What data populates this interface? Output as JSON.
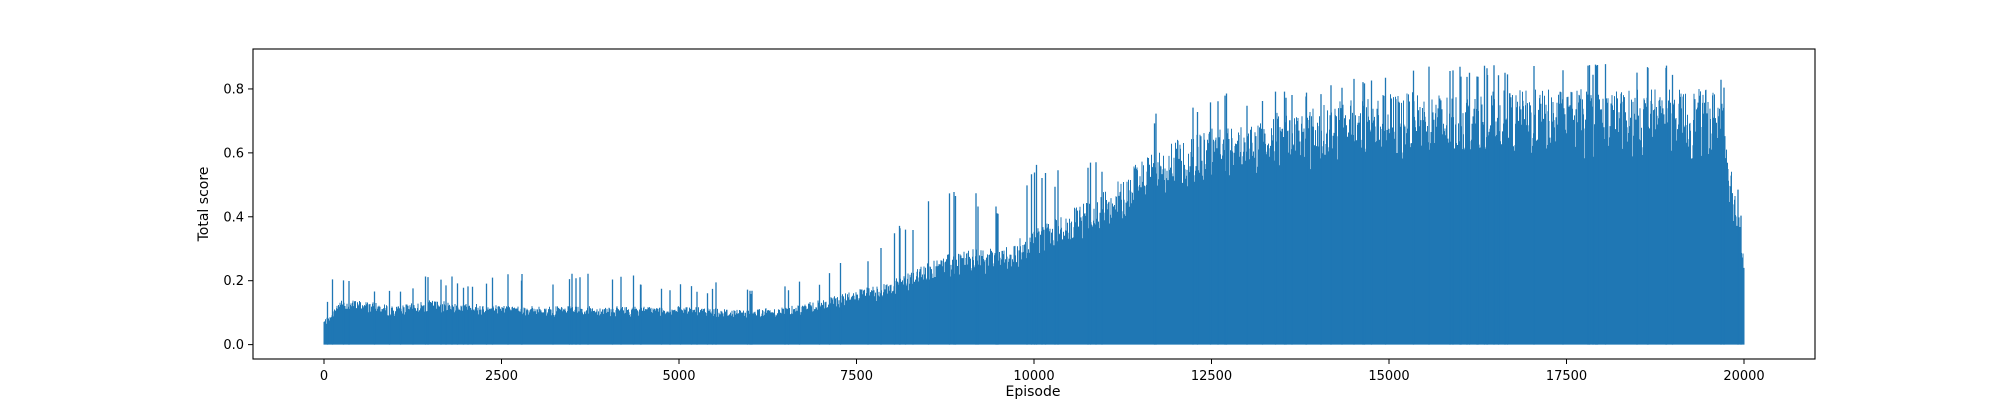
{
  "chart_data": {
    "type": "line",
    "title": "",
    "xlabel": "Episode",
    "ylabel": "Total score",
    "xlim": [
      -1000,
      21000
    ],
    "ylim": [
      -0.045,
      0.925
    ],
    "grid": false,
    "colors": {
      "series": "#1f77b4",
      "axes": "#000000",
      "background": "#ffffff"
    },
    "x_ticks": [
      {
        "value": 0,
        "label": "0"
      },
      {
        "value": 2500,
        "label": "2500"
      },
      {
        "value": 5000,
        "label": "5000"
      },
      {
        "value": 7500,
        "label": "7500"
      },
      {
        "value": 10000,
        "label": "10000"
      },
      {
        "value": 12500,
        "label": "12500"
      },
      {
        "value": 15000,
        "label": "15000"
      },
      {
        "value": 17500,
        "label": "17500"
      },
      {
        "value": 20000,
        "label": "20000"
      }
    ],
    "y_ticks": [
      {
        "value": 0.0,
        "label": "0.0"
      },
      {
        "value": 0.2,
        "label": "0.2"
      },
      {
        "value": 0.4,
        "label": "0.4"
      },
      {
        "value": 0.6,
        "label": "0.6"
      },
      {
        "value": 0.8,
        "label": "0.8"
      }
    ],
    "series": [
      {
        "x_range": [
          0,
          20000
        ],
        "envelope": {
          "episodes": [
            0,
            100,
            200,
            500,
            1000,
            1500,
            2000,
            3000,
            4000,
            5000,
            6000,
            6500,
            7000,
            7500,
            8000,
            8500,
            9000,
            9500,
            10000,
            10500,
            11000,
            11500,
            12000,
            12500,
            13000,
            13500,
            14000,
            14500,
            15000,
            16000,
            17000,
            18000,
            19000,
            19700,
            19800,
            19900,
            20000
          ],
          "typical_peak": [
            0.08,
            0.09,
            0.14,
            0.14,
            0.12,
            0.14,
            0.13,
            0.12,
            0.12,
            0.12,
            0.11,
            0.12,
            0.14,
            0.17,
            0.2,
            0.26,
            0.3,
            0.3,
            0.36,
            0.42,
            0.48,
            0.58,
            0.64,
            0.68,
            0.7,
            0.73,
            0.75,
            0.77,
            0.79,
            0.79,
            0.8,
            0.8,
            0.8,
            0.8,
            0.6,
            0.45,
            0.3
          ],
          "max_spike": [
            0.09,
            0.25,
            0.24,
            0.2,
            0.18,
            0.24,
            0.2,
            0.24,
            0.23,
            0.2,
            0.19,
            0.19,
            0.22,
            0.29,
            0.38,
            0.46,
            0.5,
            0.45,
            0.57,
            0.56,
            0.58,
            0.77,
            0.73,
            0.8,
            0.78,
            0.8,
            0.8,
            0.84,
            0.87,
            0.87,
            0.88,
            0.88,
            0.88,
            0.85,
            0.6,
            0.53,
            0.35
          ]
        }
      }
    ]
  }
}
